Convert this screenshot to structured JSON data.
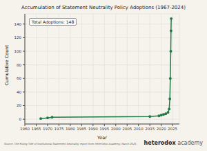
{
  "chart_data": {
    "type": "line",
    "title": "Accumulation of Statement Neutrality Policy Adoptions (1967-2024)",
    "x_label": "Year",
    "y_label": "Cumulative Count",
    "annotation": "Total Adoptions: 148",
    "source": "Source: The Rising Tide of Institutional Statement Neutrality report from Heterodox Academy, March 2025",
    "logo": "heterodox academy",
    "x": [
      1967,
      1970,
      1972,
      2015,
      2019,
      2020,
      2021,
      2022,
      2023,
      2023.5,
      2023.8,
      2024,
      2024.2,
      2024.3,
      2024.4
    ],
    "series": [
      {
        "name": "Cumulative Count",
        "color": "#1e7a46",
        "marker": "o",
        "line_style": "solid",
        "values": [
          1,
          2,
          3,
          4,
          5,
          6,
          7,
          8,
          10,
          15,
          30,
          60,
          100,
          130,
          148
        ]
      }
    ],
    "xlim": [
      1960,
      2028
    ],
    "xticks": [
      1960,
      1965,
      1970,
      1975,
      1980,
      1985,
      1990,
      1995,
      2000,
      2005,
      2010,
      2015,
      2020,
      2025
    ],
    "ylim": [
      -7,
      155
    ],
    "yticks": [
      0,
      20,
      40,
      60,
      80,
      100,
      120,
      140
    ],
    "grid": true
  }
}
